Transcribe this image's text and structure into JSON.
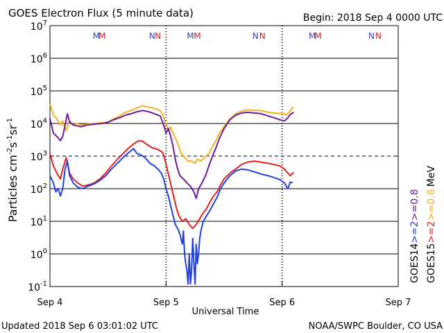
{
  "header": {
    "title": "GOES Electron Flux (5 minute data)",
    "begin": "Begin: 2018 Sep 4 0000 UTC"
  },
  "footer": {
    "updated": "Updated 2018 Sep  6 03:01:02 UTC",
    "credit": "NOAA/SWPC Boulder, CO USA"
  },
  "colors": {
    "goes14_ge2": "#1f3fe0",
    "goes15_ge2": "#e01f1f",
    "goes14_ge08": "#6a1a9a",
    "goes15_ge08": "#f0b020",
    "marker_m_goes14": "#3040c0",
    "marker_m_goes15": "#d02020"
  },
  "chart_data": {
    "type": "line",
    "yscale": "log",
    "ylim": [
      0.1,
      10000000
    ],
    "xlim_days": [
      0,
      3
    ],
    "grid": "horizontal",
    "ylabel_parts": {
      "base": "Particles cm",
      "exp1": "-2",
      "mid1": "s",
      "exp2": "-1",
      "mid2": "sr",
      "exp3": "-1"
    },
    "xlabel": "Universal Time",
    "x_ticks": [
      {
        "day": 0,
        "label": "Sep 4"
      },
      {
        "day": 1,
        "label": "Sep 5"
      },
      {
        "day": 2,
        "label": "Sep 6"
      },
      {
        "day": 3,
        "label": "Sep 7"
      }
    ],
    "y_ticks": [
      {
        "value": 10000000,
        "base": "10",
        "exp": "7"
      },
      {
        "value": 1000000,
        "base": "10",
        "exp": "6"
      },
      {
        "value": 100000,
        "base": "10",
        "exp": "5"
      },
      {
        "value": 10000,
        "base": "10",
        "exp": "4"
      },
      {
        "value": 1000,
        "base": "10",
        "exp": "3"
      },
      {
        "value": 100,
        "base": "10",
        "exp": "2"
      },
      {
        "value": 10,
        "base": "10",
        "exp": "1"
      },
      {
        "value": 1,
        "base": "10",
        "exp": "0"
      },
      {
        "value": 0.1,
        "base": "10",
        "exp": "-1"
      }
    ],
    "threshold_line": 1000,
    "markers": [
      {
        "day": 0.4,
        "letter": "M",
        "satellite": "GOES14"
      },
      {
        "day": 0.45,
        "letter": "M",
        "satellite": "GOES15"
      },
      {
        "day": 0.88,
        "letter": "N",
        "satellite": "GOES14"
      },
      {
        "day": 0.93,
        "letter": "N",
        "satellite": "GOES15"
      },
      {
        "day": 1.21,
        "letter": "M",
        "satellite": "GOES14"
      },
      {
        "day": 1.27,
        "letter": "M",
        "satellite": "GOES15"
      },
      {
        "day": 1.77,
        "letter": "N",
        "satellite": "GOES14"
      },
      {
        "day": 1.83,
        "letter": "N",
        "satellite": "GOES15"
      },
      {
        "day": 2.26,
        "letter": "M",
        "satellite": "GOES14"
      },
      {
        "day": 2.31,
        "letter": "M",
        "satellite": "GOES15"
      },
      {
        "day": 2.77,
        "letter": "N",
        "satellite": "GOES14"
      },
      {
        "day": 2.83,
        "letter": "N",
        "satellite": "GOES15"
      }
    ],
    "legend": {
      "right_col1": [
        {
          "text": "GOES14",
          "color": "#000000"
        },
        {
          "text": ">=2",
          "color": "#1f3fe0"
        },
        {
          "text": ">=0.8",
          "color": "#6a1a9a"
        }
      ],
      "right_col2": [
        {
          "text": "GOES15",
          "color": "#000000"
        },
        {
          "text": ">=2",
          "color": "#e01f1f"
        },
        {
          "text": ">=0.8",
          "color": "#f0b020"
        },
        {
          "text": "MeV",
          "color": "#000000"
        }
      ]
    },
    "series": [
      {
        "key": "goes15_ge08",
        "points": [
          [
            0,
            40000
          ],
          [
            0.03,
            18000
          ],
          [
            0.06,
            14000
          ],
          [
            0.09,
            9000
          ],
          [
            0.11,
            12000
          ],
          [
            0.14,
            6000
          ],
          [
            0.17,
            12000
          ],
          [
            0.2,
            9000
          ],
          [
            0.23,
            10000
          ],
          [
            0.27,
            9000
          ],
          [
            0.32,
            9500
          ],
          [
            0.38,
            10000
          ],
          [
            0.45,
            10500
          ],
          [
            0.5,
            11000
          ],
          [
            0.55,
            14000
          ],
          [
            0.6,
            17000
          ],
          [
            0.65,
            22000
          ],
          [
            0.7,
            25000
          ],
          [
            0.75,
            30000
          ],
          [
            0.78,
            33000
          ],
          [
            0.8,
            35000
          ],
          [
            0.84,
            32000
          ],
          [
            0.88,
            30000
          ],
          [
            0.92,
            28000
          ],
          [
            0.95,
            24000
          ],
          [
            0.97,
            20000
          ],
          [
            0.99,
            12000
          ],
          [
            1.0,
            10000
          ],
          [
            1.02,
            6000
          ],
          [
            1.04,
            8000
          ],
          [
            1.06,
            5000
          ],
          [
            1.09,
            3000
          ],
          [
            1.11,
            2000
          ],
          [
            1.13,
            1200
          ],
          [
            1.16,
            900
          ],
          [
            1.19,
            700
          ],
          [
            1.22,
            700
          ],
          [
            1.25,
            600
          ],
          [
            1.27,
            800
          ],
          [
            1.3,
            700
          ],
          [
            1.33,
            900
          ],
          [
            1.37,
            1200
          ],
          [
            1.4,
            2000
          ],
          [
            1.43,
            3000
          ],
          [
            1.46,
            5000
          ],
          [
            1.5,
            8000
          ],
          [
            1.55,
            14000
          ],
          [
            1.6,
            20000
          ],
          [
            1.65,
            24000
          ],
          [
            1.7,
            26000
          ],
          [
            1.76,
            25000
          ],
          [
            1.82,
            25000
          ],
          [
            1.88,
            22000
          ],
          [
            1.93,
            21000
          ],
          [
            1.98,
            20000
          ],
          [
            2.0,
            22000
          ],
          [
            2.03,
            18000
          ],
          [
            2.06,
            22000
          ],
          [
            2.08,
            28000
          ],
          [
            2.1,
            32000
          ]
        ]
      },
      {
        "key": "goes14_ge08",
        "points": [
          [
            0,
            14000
          ],
          [
            0.03,
            5000
          ],
          [
            0.06,
            4000
          ],
          [
            0.09,
            3000
          ],
          [
            0.11,
            4000
          ],
          [
            0.13,
            9000
          ],
          [
            0.15,
            20000
          ],
          [
            0.17,
            11000
          ],
          [
            0.2,
            9000
          ],
          [
            0.23,
            8500
          ],
          [
            0.27,
            8000
          ],
          [
            0.32,
            9000
          ],
          [
            0.38,
            9500
          ],
          [
            0.45,
            10000
          ],
          [
            0.5,
            11000
          ],
          [
            0.55,
            13000
          ],
          [
            0.6,
            15000
          ],
          [
            0.65,
            18000
          ],
          [
            0.7,
            20000
          ],
          [
            0.75,
            23000
          ],
          [
            0.8,
            25000
          ],
          [
            0.85,
            23000
          ],
          [
            0.9,
            20000
          ],
          [
            0.95,
            17000
          ],
          [
            0.98,
            9000
          ],
          [
            1.0,
            5000
          ],
          [
            1.02,
            7000
          ],
          [
            1.04,
            4000
          ],
          [
            1.06,
            2000
          ],
          [
            1.08,
            800
          ],
          [
            1.1,
            400
          ],
          [
            1.12,
            250
          ],
          [
            1.15,
            200
          ],
          [
            1.18,
            150
          ],
          [
            1.21,
            120
          ],
          [
            1.24,
            80
          ],
          [
            1.26,
            50
          ],
          [
            1.28,
            100
          ],
          [
            1.31,
            150
          ],
          [
            1.34,
            250
          ],
          [
            1.37,
            500
          ],
          [
            1.4,
            1000
          ],
          [
            1.43,
            1800
          ],
          [
            1.46,
            3500
          ],
          [
            1.5,
            7000
          ],
          [
            1.55,
            13000
          ],
          [
            1.6,
            18000
          ],
          [
            1.65,
            21000
          ],
          [
            1.7,
            22000
          ],
          [
            1.76,
            21000
          ],
          [
            1.82,
            20000
          ],
          [
            1.88,
            17000
          ],
          [
            1.93,
            15000
          ],
          [
            1.98,
            13000
          ],
          [
            2.02,
            12000
          ],
          [
            2.05,
            15000
          ],
          [
            2.07,
            19000
          ],
          [
            2.1,
            22000
          ]
        ]
      },
      {
        "key": "goes15_ge2",
        "points": [
          [
            0,
            1200
          ],
          [
            0.03,
            500
          ],
          [
            0.06,
            300
          ],
          [
            0.09,
            200
          ],
          [
            0.11,
            400
          ],
          [
            0.14,
            900
          ],
          [
            0.17,
            300
          ],
          [
            0.2,
            200
          ],
          [
            0.24,
            150
          ],
          [
            0.28,
            120
          ],
          [
            0.33,
            130
          ],
          [
            0.38,
            150
          ],
          [
            0.43,
            200
          ],
          [
            0.48,
            300
          ],
          [
            0.53,
            500
          ],
          [
            0.58,
            800
          ],
          [
            0.63,
            1200
          ],
          [
            0.68,
            1800
          ],
          [
            0.73,
            2500
          ],
          [
            0.77,
            3000
          ],
          [
            0.8,
            2800
          ],
          [
            0.84,
            2200
          ],
          [
            0.88,
            1800
          ],
          [
            0.93,
            1600
          ],
          [
            0.97,
            1300
          ],
          [
            0.99,
            800
          ],
          [
            1.01,
            400
          ],
          [
            1.03,
            200
          ],
          [
            1.05,
            100
          ],
          [
            1.07,
            50
          ],
          [
            1.09,
            25
          ],
          [
            1.11,
            15
          ],
          [
            1.14,
            10
          ],
          [
            1.17,
            12
          ],
          [
            1.2,
            8
          ],
          [
            1.23,
            6
          ],
          [
            1.26,
            8
          ],
          [
            1.29,
            12
          ],
          [
            1.32,
            18
          ],
          [
            1.35,
            25
          ],
          [
            1.38,
            40
          ],
          [
            1.41,
            60
          ],
          [
            1.44,
            80
          ],
          [
            1.47,
            130
          ],
          [
            1.5,
            200
          ],
          [
            1.55,
            300
          ],
          [
            1.6,
            400
          ],
          [
            1.65,
            550
          ],
          [
            1.7,
            650
          ],
          [
            1.76,
            700
          ],
          [
            1.82,
            650
          ],
          [
            1.88,
            600
          ],
          [
            1.93,
            550
          ],
          [
            1.98,
            500
          ],
          [
            2.02,
            400
          ],
          [
            2.05,
            300
          ],
          [
            2.07,
            250
          ],
          [
            2.1,
            320
          ]
        ]
      },
      {
        "key": "goes14_ge2",
        "points": [
          [
            0,
            250
          ],
          [
            0.03,
            150
          ],
          [
            0.05,
            80
          ],
          [
            0.07,
            100
          ],
          [
            0.09,
            60
          ],
          [
            0.11,
            100
          ],
          [
            0.13,
            400
          ],
          [
            0.15,
            700
          ],
          [
            0.17,
            250
          ],
          [
            0.2,
            150
          ],
          [
            0.24,
            110
          ],
          [
            0.28,
            100
          ],
          [
            0.33,
            120
          ],
          [
            0.38,
            140
          ],
          [
            0.43,
            180
          ],
          [
            0.48,
            250
          ],
          [
            0.53,
            400
          ],
          [
            0.58,
            600
          ],
          [
            0.63,
            900
          ],
          [
            0.68,
            1300
          ],
          [
            0.72,
            1700
          ],
          [
            0.75,
            1200
          ],
          [
            0.78,
            1100
          ],
          [
            0.82,
            900
          ],
          [
            0.86,
            600
          ],
          [
            0.9,
            500
          ],
          [
            0.93,
            400
          ],
          [
            0.96,
            300
          ],
          [
            0.98,
            200
          ],
          [
            1.0,
            100
          ],
          [
            1.02,
            60
          ],
          [
            1.04,
            30
          ],
          [
            1.06,
            15
          ],
          [
            1.08,
            8
          ],
          [
            1.1,
            6
          ],
          [
            1.12,
            4
          ],
          [
            1.14,
            2
          ],
          [
            1.15,
            5
          ],
          [
            1.16,
            1
          ],
          [
            1.17,
            0.5
          ],
          [
            1.18,
            0.3
          ],
          [
            1.19,
            0.12
          ],
          [
            1.2,
            1
          ],
          [
            1.21,
            0.12
          ],
          [
            1.22,
            0.3
          ],
          [
            1.23,
            3
          ],
          [
            1.24,
            0.5
          ],
          [
            1.25,
            0.12
          ],
          [
            1.26,
            2
          ],
          [
            1.27,
            0.5
          ],
          [
            1.28,
            1
          ],
          [
            1.29,
            3
          ],
          [
            1.3,
            5
          ],
          [
            1.32,
            10
          ],
          [
            1.35,
            15
          ],
          [
            1.38,
            22
          ],
          [
            1.41,
            35
          ],
          [
            1.44,
            55
          ],
          [
            1.47,
            100
          ],
          [
            1.5,
            150
          ],
          [
            1.55,
            250
          ],
          [
            1.6,
            350
          ],
          [
            1.65,
            400
          ],
          [
            1.7,
            380
          ],
          [
            1.76,
            330
          ],
          [
            1.82,
            280
          ],
          [
            1.88,
            250
          ],
          [
            1.93,
            220
          ],
          [
            1.98,
            190
          ],
          [
            2.02,
            150
          ],
          [
            2.05,
            100
          ],
          [
            2.07,
            160
          ],
          [
            2.09,
            150
          ]
        ]
      }
    ]
  }
}
